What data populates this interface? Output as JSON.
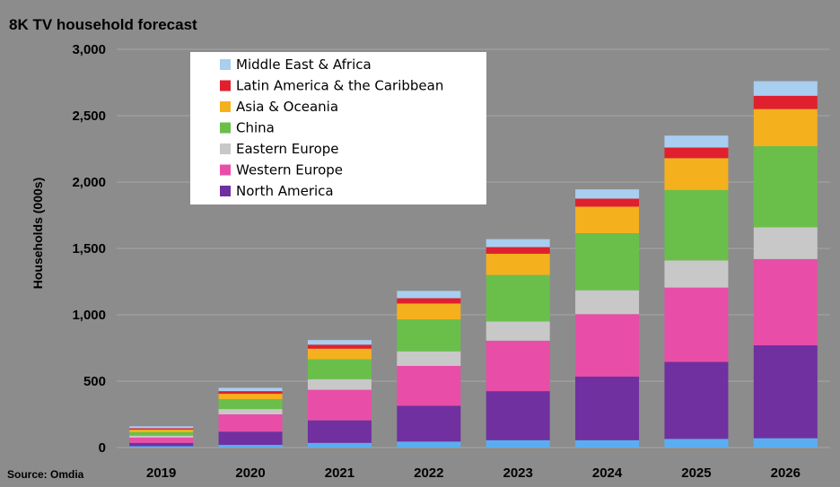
{
  "chart_data": {
    "type": "bar",
    "stacked": true,
    "title": "8K TV household forecast",
    "ylabel": "Households (000s)",
    "xlabel": "",
    "source": "Source: Omdia",
    "ylim": [
      0,
      3000
    ],
    "yticks": [
      0,
      500,
      1000,
      1500,
      2000,
      2500,
      3000
    ],
    "ytick_labels": [
      "0",
      "500",
      "1,000",
      "1,500",
      "2,000",
      "2,500",
      "3,000"
    ],
    "categories": [
      "2019",
      "2020",
      "2021",
      "2022",
      "2023",
      "2024",
      "2025",
      "2026"
    ],
    "legend_position": "top-left",
    "series": [
      {
        "name": "Unlabeled (light blue base)",
        "color": "#5aaef0",
        "in_legend": false,
        "values": [
          10,
          20,
          35,
          45,
          55,
          55,
          65,
          70
        ]
      },
      {
        "name": "North America",
        "color": "#7030a0",
        "values": [
          25,
          100,
          170,
          270,
          370,
          480,
          580,
          700
        ]
      },
      {
        "name": "Western Europe",
        "color": "#e84ea8",
        "values": [
          40,
          130,
          230,
          300,
          380,
          470,
          560,
          650
        ]
      },
      {
        "name": "Eastern Europe",
        "color": "#c8c8c8",
        "values": [
          15,
          40,
          80,
          110,
          145,
          180,
          205,
          240
        ]
      },
      {
        "name": "China",
        "color": "#6abf4b",
        "values": [
          25,
          75,
          150,
          240,
          350,
          430,
          530,
          610
        ]
      },
      {
        "name": "Asia & Oceania",
        "color": "#f5b01d",
        "values": [
          20,
          40,
          80,
          120,
          160,
          200,
          240,
          280
        ]
      },
      {
        "name": "Latin America & the Caribbean",
        "color": "#e0202e",
        "values": [
          10,
          20,
          30,
          40,
          50,
          60,
          80,
          100
        ]
      },
      {
        "name": "Middle East & Africa",
        "color": "#a8cef0",
        "values": [
          15,
          25,
          35,
          55,
          60,
          70,
          90,
          110
        ]
      }
    ],
    "legend_order": [
      "Middle East & Africa",
      "Latin America & the Caribbean",
      "Asia & Oceania",
      "China",
      "Eastern Europe",
      "Western Europe",
      "North America"
    ]
  }
}
